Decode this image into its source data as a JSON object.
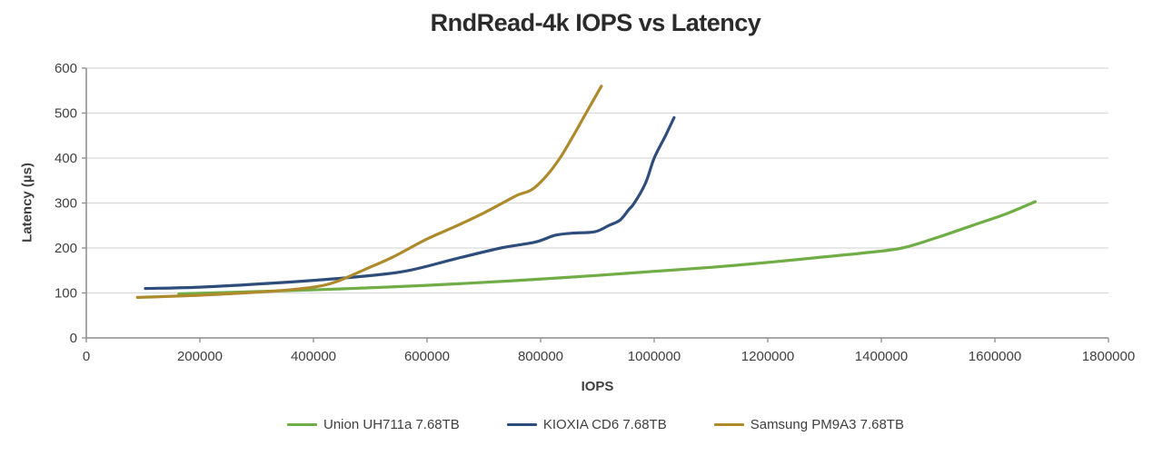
{
  "chart_data": {
    "type": "line",
    "title": "RndRead-4k IOPS vs Latency",
    "xlabel": "IOPS",
    "ylabel": "Latency (µs)",
    "xlim": [
      0,
      1800000
    ],
    "ylim": [
      0,
      600
    ],
    "x_ticks": [
      0,
      200000,
      400000,
      600000,
      800000,
      1000000,
      1200000,
      1400000,
      1600000,
      1800000
    ],
    "y_ticks": [
      0,
      100,
      200,
      300,
      400,
      500,
      600
    ],
    "grid": "horizontal-only",
    "legend_position": "bottom",
    "colors": {
      "grid": "#d9d9d9",
      "axis": "#8c8c8c",
      "text": "#404040",
      "title": "#2b2b2b"
    },
    "series": [
      {
        "name": "Union UH711a 7.68TB",
        "color": "#70AD47",
        "points": [
          [
            163000,
            98
          ],
          [
            300000,
            103
          ],
          [
            450000,
            109
          ],
          [
            600000,
            117
          ],
          [
            750000,
            127
          ],
          [
            900000,
            139
          ],
          [
            1000000,
            148
          ],
          [
            1100000,
            157
          ],
          [
            1210000,
            169
          ],
          [
            1290000,
            179
          ],
          [
            1370000,
            189
          ],
          [
            1437000,
            200
          ],
          [
            1500000,
            224
          ],
          [
            1560000,
            250
          ],
          [
            1620000,
            276
          ],
          [
            1671000,
            303
          ]
        ]
      },
      {
        "name": "KIOXIA CD6 7.68TB",
        "color": "#2E4D7B",
        "points": [
          [
            104000,
            110
          ],
          [
            200000,
            113
          ],
          [
            330000,
            122
          ],
          [
            460000,
            134
          ],
          [
            560000,
            148
          ],
          [
            650000,
            176
          ],
          [
            730000,
            200
          ],
          [
            790000,
            213
          ],
          [
            825000,
            228
          ],
          [
            855000,
            233
          ],
          [
            895000,
            236
          ],
          [
            920000,
            250
          ],
          [
            940000,
            262
          ],
          [
            955000,
            285
          ],
          [
            965000,
            300
          ],
          [
            985000,
            345
          ],
          [
            1000000,
            400
          ],
          [
            1020000,
            450
          ],
          [
            1035000,
            490
          ]
        ]
      },
      {
        "name": "Samsung PM9A3 7.68TB",
        "color": "#AD8A2C",
        "points": [
          [
            90000,
            90
          ],
          [
            200000,
            95
          ],
          [
            330000,
            104
          ],
          [
            400000,
            113
          ],
          [
            440000,
            125
          ],
          [
            490000,
            152
          ],
          [
            540000,
            180
          ],
          [
            600000,
            220
          ],
          [
            650000,
            248
          ],
          [
            700000,
            278
          ],
          [
            733000,
            300
          ],
          [
            760000,
            318
          ],
          [
            785000,
            330
          ],
          [
            810000,
            360
          ],
          [
            834000,
            400
          ],
          [
            860000,
            455
          ],
          [
            880000,
            500
          ],
          [
            898000,
            540
          ],
          [
            907000,
            560
          ]
        ]
      }
    ]
  }
}
